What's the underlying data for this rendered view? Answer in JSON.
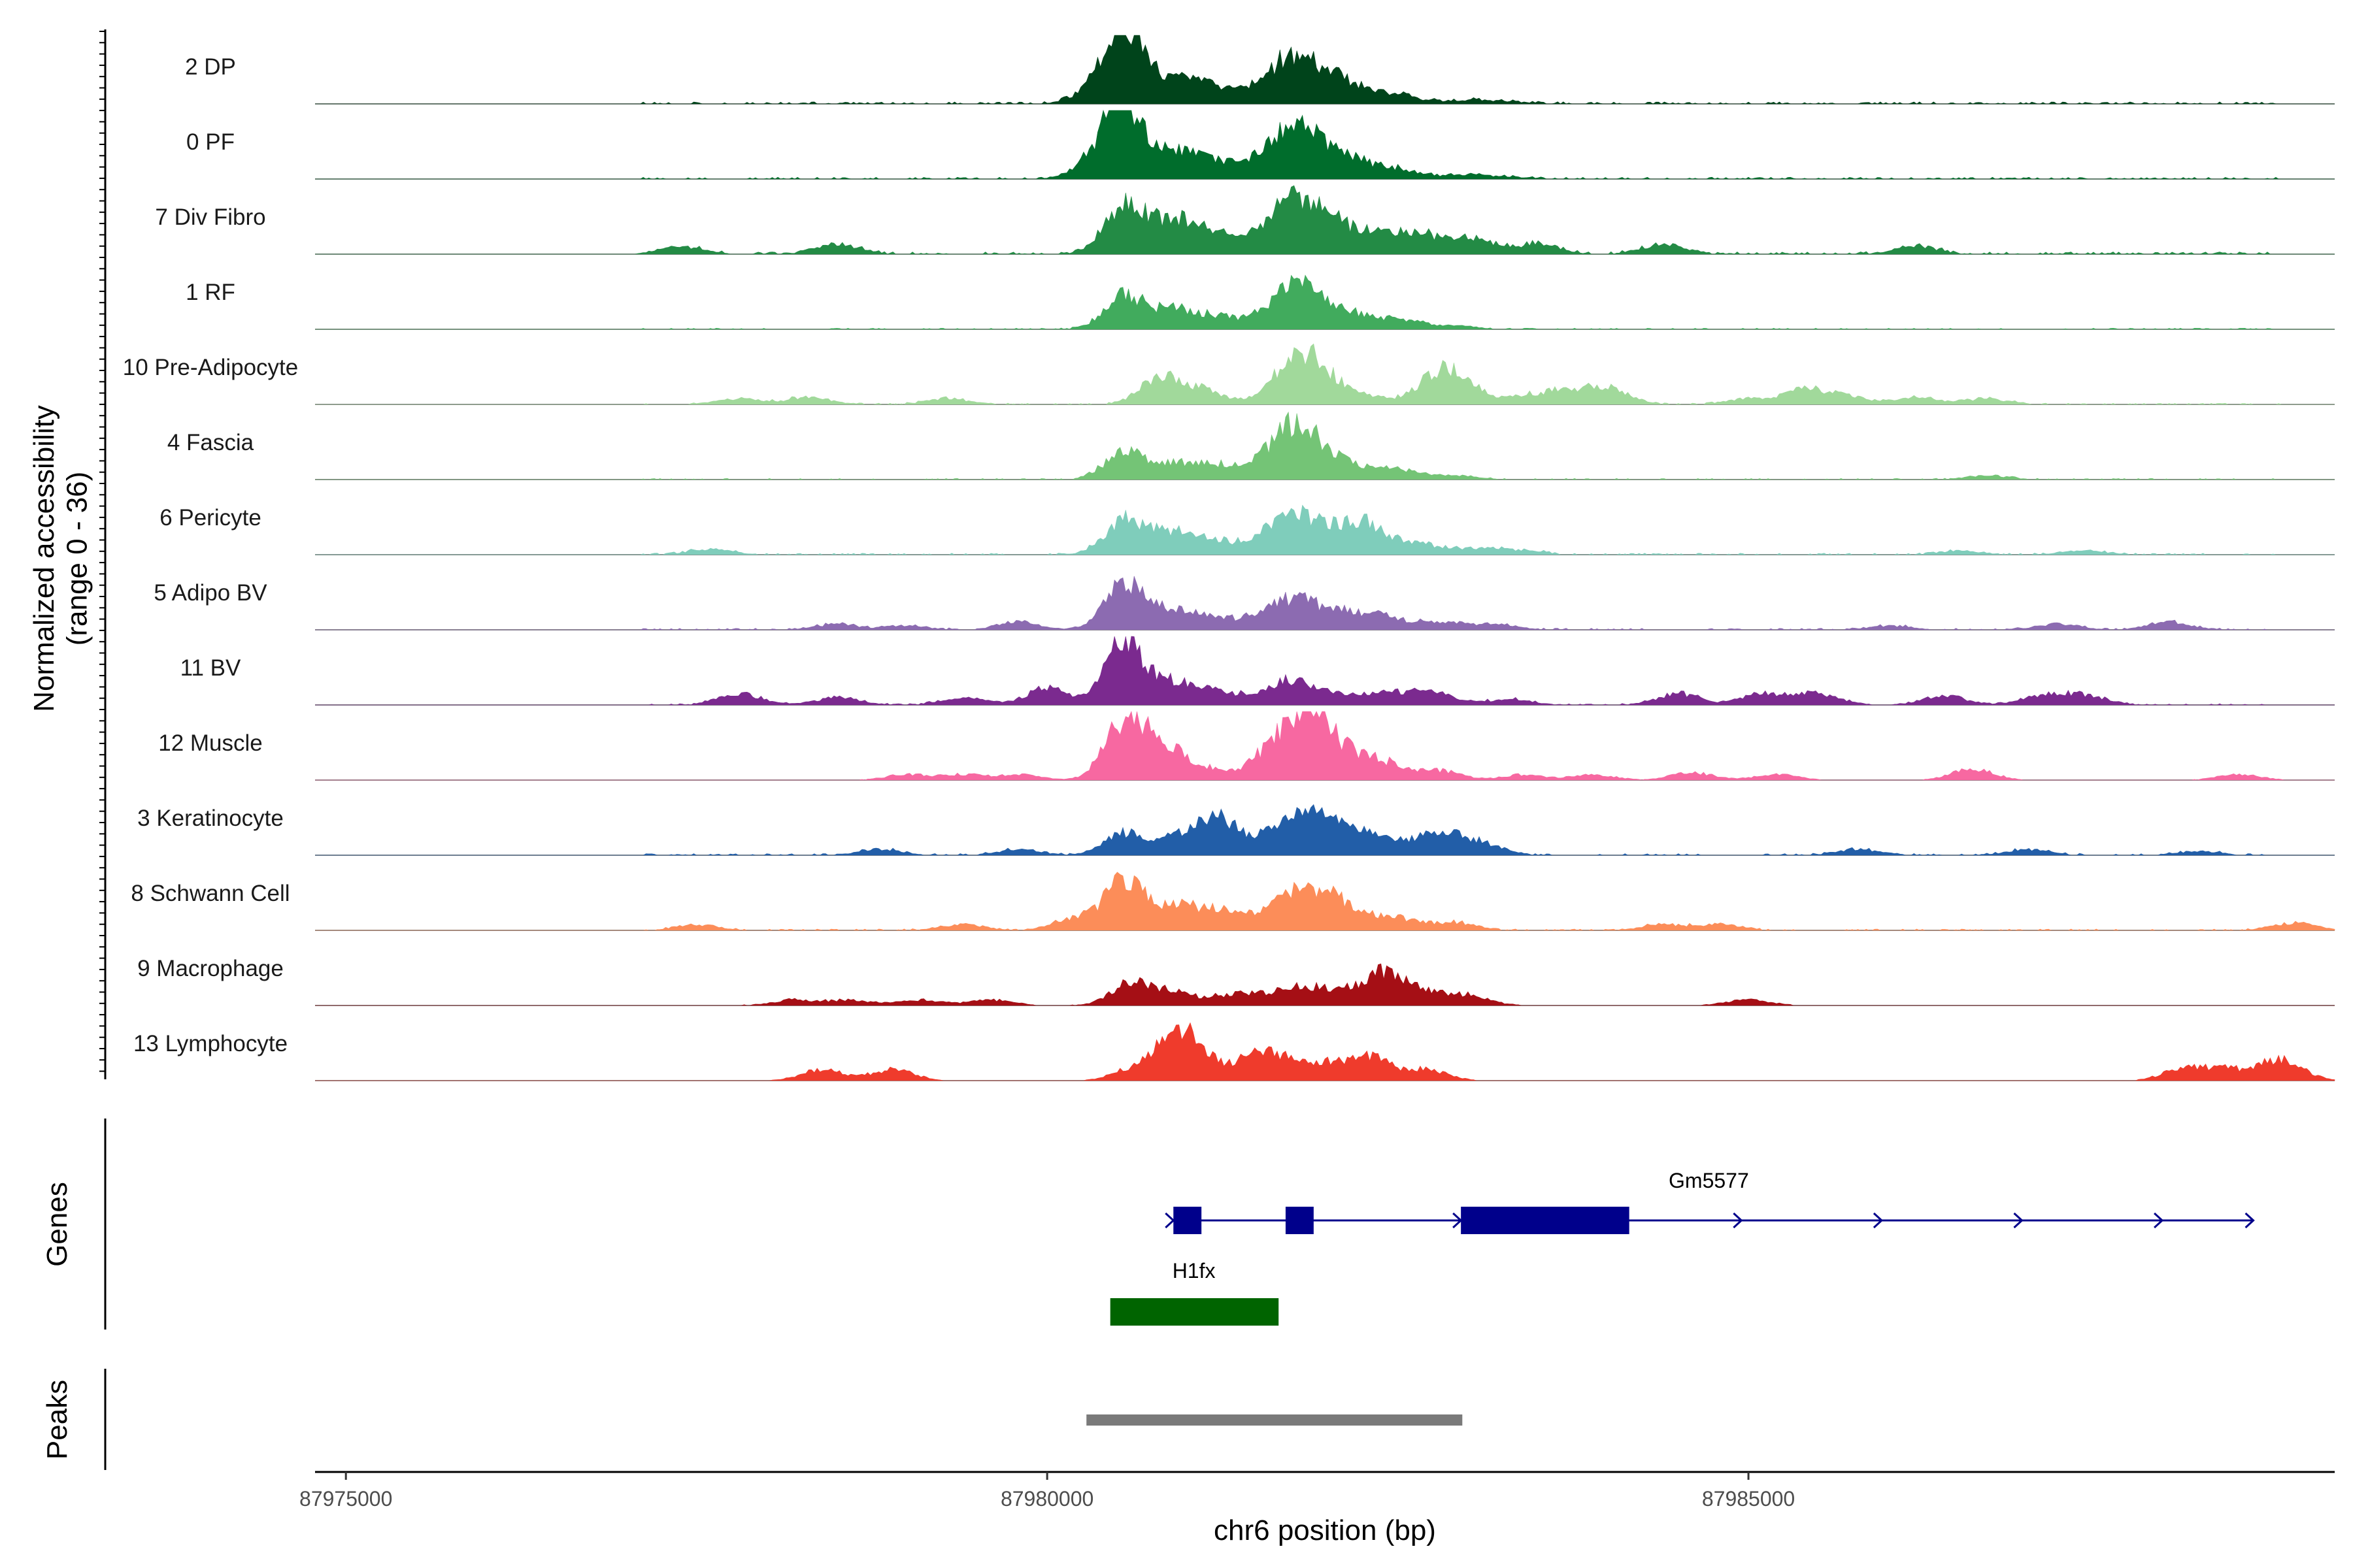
{
  "chart_data": {
    "type": "area",
    "title": "",
    "chromosome": "chr6",
    "xlabel": "chr6 position (bp)",
    "xlim": [
      87974780,
      87989180
    ],
    "x_ticks": [
      87975000,
      87980000,
      87985000
    ],
    "ylabel": "Normalized accessibility\n(range 0 - 36)",
    "ylim": [
      0,
      36
    ],
    "tracks": [
      {
        "name": "2 DP",
        "color": "#00441b",
        "spread": 0.9,
        "peaks": [
          [
            87980550,
            36,
            130
          ],
          [
            87980900,
            14,
            150
          ],
          [
            87980400,
            10,
            160
          ],
          [
            87981200,
            7,
            140
          ],
          [
            87981600,
            11,
            170
          ],
          [
            87981800,
            18,
            150
          ],
          [
            87982100,
            12,
            180
          ],
          [
            87982500,
            4,
            160
          ],
          [
            87983000,
            2,
            150
          ],
          [
            87983300,
            1,
            150
          ]
        ]
      },
      {
        "name": "0 PF",
        "color": "#006d2c",
        "spread": 0.8,
        "peaks": [
          [
            87980550,
            36,
            130
          ],
          [
            87980900,
            14,
            150
          ],
          [
            87980400,
            12,
            160
          ],
          [
            87981200,
            8,
            140
          ],
          [
            87981600,
            12,
            170
          ],
          [
            87981800,
            20,
            150
          ],
          [
            87982100,
            12,
            180
          ],
          [
            87982500,
            5,
            160
          ],
          [
            87983000,
            2,
            150
          ],
          [
            87983300,
            1,
            150
          ]
        ]
      },
      {
        "name": "7 Div Fibro",
        "color": "#238b45",
        "spread": 1.0,
        "peaks": [
          [
            87980550,
            26,
            140
          ],
          [
            87980900,
            18,
            150
          ],
          [
            87981200,
            10,
            140
          ],
          [
            87981600,
            12,
            170
          ],
          [
            87981800,
            22,
            150
          ],
          [
            87982100,
            14,
            180
          ],
          [
            87982500,
            10,
            160
          ],
          [
            87982800,
            7,
            150
          ],
          [
            87983100,
            6,
            150
          ],
          [
            87983500,
            5,
            150
          ],
          [
            87984400,
            5,
            150
          ],
          [
            87977400,
            4,
            150
          ],
          [
            87978500,
            5,
            150
          ],
          [
            87986200,
            4,
            150
          ]
        ]
      },
      {
        "name": "1 RF",
        "color": "#41ab5d",
        "spread": 0.5,
        "peaks": [
          [
            87980550,
            18,
            140
          ],
          [
            87980900,
            10,
            150
          ],
          [
            87981200,
            6,
            140
          ],
          [
            87981600,
            8,
            170
          ],
          [
            87981800,
            18,
            150
          ],
          [
            87982100,
            9,
            180
          ],
          [
            87982500,
            5,
            160
          ],
          [
            87982900,
            2,
            150
          ]
        ]
      },
      {
        "name": "10 Pre-Adipocyte",
        "color": "#a1d99b",
        "spread": 0.55,
        "peaks": [
          [
            87980800,
            14,
            140
          ],
          [
            87981100,
            8,
            150
          ],
          [
            87981700,
            15,
            150
          ],
          [
            87981900,
            19,
            150
          ],
          [
            87982200,
            5,
            160
          ],
          [
            87982700,
            7,
            150
          ],
          [
            87982900,
            16,
            150
          ],
          [
            87983400,
            4,
            150
          ],
          [
            87983700,
            7,
            150
          ],
          [
            87984000,
            8,
            150
          ],
          [
            87985000,
            3,
            150
          ],
          [
            87985400,
            8,
            150
          ],
          [
            87985700,
            4,
            150
          ],
          [
            87986200,
            4,
            150
          ],
          [
            87986700,
            3,
            150
          ],
          [
            87977800,
            3,
            150
          ],
          [
            87978300,
            4,
            150
          ],
          [
            87979300,
            3,
            150
          ]
        ]
      },
      {
        "name": "4 Fascia",
        "color": "#74c476",
        "spread": 0.5,
        "peaks": [
          [
            87980550,
            15,
            140
          ],
          [
            87980900,
            8,
            150
          ],
          [
            87981200,
            7,
            140
          ],
          [
            87981600,
            10,
            170
          ],
          [
            87981800,
            24,
            150
          ],
          [
            87982100,
            8,
            180
          ],
          [
            87982500,
            5,
            160
          ],
          [
            87982900,
            2,
            150
          ],
          [
            87986700,
            2,
            150
          ]
        ]
      },
      {
        "name": "6 Pericyte",
        "color": "#7fcdbb",
        "spread": 0.65,
        "peaks": [
          [
            87980550,
            18,
            140
          ],
          [
            87980900,
            12,
            150
          ],
          [
            87981200,
            6,
            140
          ],
          [
            87981600,
            10,
            170
          ],
          [
            87981800,
            14,
            150
          ],
          [
            87982100,
            10,
            180
          ],
          [
            87982300,
            12,
            160
          ],
          [
            87982700,
            5,
            150
          ],
          [
            87983100,
            3,
            150
          ],
          [
            87983400,
            2,
            150
          ],
          [
            87977600,
            3,
            150
          ],
          [
            87986500,
            2,
            150
          ],
          [
            87987400,
            2,
            150
          ]
        ]
      },
      {
        "name": "5 Adipo BV",
        "color": "#8c6bb1",
        "spread": 0.7,
        "peaks": [
          [
            87980550,
            24,
            140
          ],
          [
            87980900,
            10,
            150
          ],
          [
            87981200,
            6,
            140
          ],
          [
            87981600,
            8,
            170
          ],
          [
            87981800,
            11,
            150
          ],
          [
            87982100,
            8,
            180
          ],
          [
            87982400,
            6,
            160
          ],
          [
            87982800,
            4,
            150
          ],
          [
            87983200,
            3,
            150
          ],
          [
            87978500,
            3,
            150
          ],
          [
            87979000,
            2,
            150
          ],
          [
            87979800,
            4,
            150
          ],
          [
            87987200,
            3,
            150
          ],
          [
            87988000,
            4,
            150
          ],
          [
            87986000,
            2,
            150
          ]
        ]
      },
      {
        "name": "11 BV",
        "color": "#7b2a8f",
        "spread": 0.55,
        "peaks": [
          [
            87980550,
            36,
            130
          ],
          [
            87980900,
            12,
            150
          ],
          [
            87981200,
            7,
            140
          ],
          [
            87981600,
            7,
            170
          ],
          [
            87981800,
            8,
            150
          ],
          [
            87982100,
            5,
            180
          ],
          [
            87982500,
            6,
            160
          ],
          [
            87982800,
            5,
            150
          ],
          [
            87983300,
            3,
            150
          ],
          [
            87977800,
            6,
            150
          ],
          [
            87978500,
            4,
            150
          ],
          [
            87979400,
            4,
            150
          ],
          [
            87980000,
            9,
            150
          ],
          [
            87984500,
            6,
            150
          ],
          [
            87985100,
            6,
            150
          ],
          [
            87985500,
            6,
            150
          ],
          [
            87986400,
            5,
            150
          ],
          [
            87987100,
            5,
            150
          ],
          [
            87987400,
            5,
            150
          ]
        ]
      },
      {
        "name": "12 Muscle",
        "color": "#f768a1",
        "spread": 0.0,
        "peaks": [
          [
            87980550,
            30,
            140
          ],
          [
            87980800,
            18,
            150
          ],
          [
            87981100,
            6,
            140
          ],
          [
            87981600,
            14,
            170
          ],
          [
            87981850,
            31,
            150
          ],
          [
            87982100,
            12,
            180
          ],
          [
            87982400,
            8,
            160
          ],
          [
            87982800,
            5,
            150
          ],
          [
            87979000,
            3,
            150
          ],
          [
            87979400,
            3,
            150
          ],
          [
            87979800,
            3,
            150
          ],
          [
            87983400,
            3,
            150
          ],
          [
            87983900,
            3,
            150
          ],
          [
            87984600,
            4,
            150
          ],
          [
            87985200,
            3,
            150
          ],
          [
            87986600,
            6,
            150
          ],
          [
            87988500,
            3,
            150
          ]
        ]
      },
      {
        "name": "3 Keratinocyte",
        "color": "#225ea8",
        "spread": 0.7,
        "peaks": [
          [
            87980550,
            12,
            140
          ],
          [
            87980900,
            8,
            150
          ],
          [
            87981200,
            19,
            150
          ],
          [
            87981600,
            10,
            170
          ],
          [
            87981850,
            16,
            150
          ],
          [
            87982100,
            11,
            180
          ],
          [
            87982400,
            8,
            160
          ],
          [
            87982800,
            12,
            150
          ],
          [
            87983100,
            6,
            150
          ],
          [
            87978800,
            3,
            150
          ],
          [
            87979800,
            3,
            150
          ],
          [
            87985800,
            3,
            150
          ],
          [
            87987000,
            3,
            150
          ],
          [
            87988200,
            2,
            150
          ]
        ]
      },
      {
        "name": "8 Schwann Cell",
        "color": "#fc8d59",
        "spread": 0.6,
        "peaks": [
          [
            87980550,
            28,
            130
          ],
          [
            87980900,
            12,
            150
          ],
          [
            87981200,
            10,
            140
          ],
          [
            87981600,
            10,
            170
          ],
          [
            87981850,
            16,
            150
          ],
          [
            87982100,
            12,
            180
          ],
          [
            87982500,
            6,
            160
          ],
          [
            87982900,
            4,
            150
          ],
          [
            87980200,
            7,
            150
          ],
          [
            87977500,
            3,
            150
          ],
          [
            87979400,
            3,
            150
          ],
          [
            87984400,
            3,
            150
          ],
          [
            87984800,
            3,
            150
          ],
          [
            87988900,
            4,
            150
          ]
        ]
      },
      {
        "name": "9 Macrophage",
        "color": "#a50f15",
        "spread": 0.25,
        "peaks": [
          [
            87980600,
            12,
            140
          ],
          [
            87980900,
            7,
            150
          ],
          [
            87981300,
            5,
            140
          ],
          [
            87981600,
            5,
            170
          ],
          [
            87981850,
            7,
            150
          ],
          [
            87982100,
            5,
            180
          ],
          [
            87982400,
            16,
            150
          ],
          [
            87982700,
            6,
            150
          ],
          [
            87983000,
            5,
            150
          ],
          [
            87978200,
            3,
            150
          ],
          [
            87978600,
            3,
            150
          ],
          [
            87979100,
            3,
            150
          ],
          [
            87979600,
            3,
            150
          ],
          [
            87985000,
            3,
            150
          ]
        ]
      },
      {
        "name": "13 Lymphocyte",
        "color": "#ef3b2c",
        "spread": 0.0,
        "peaks": [
          [
            87980900,
            23,
            130
          ],
          [
            87981100,
            12,
            140
          ],
          [
            87980600,
            6,
            140
          ],
          [
            87981500,
            15,
            140
          ],
          [
            87981750,
            7,
            140
          ],
          [
            87982000,
            8,
            140
          ],
          [
            87982300,
            12,
            150
          ],
          [
            87982700,
            6,
            150
          ],
          [
            87978400,
            6,
            150
          ],
          [
            87978900,
            6,
            150
          ],
          [
            87988100,
            6,
            150
          ],
          [
            87988400,
            6,
            150
          ],
          [
            87988800,
            12,
            150
          ]
        ]
      }
    ],
    "genes": [
      {
        "name": "Gm5577",
        "strand": "+",
        "color": "#00008b",
        "start": 87980900,
        "end": 87988600,
        "exons": [
          [
            87980900,
            87981100
          ],
          [
            87981700,
            87981900
          ],
          [
            87982950,
            87984150
          ]
        ],
        "arrow_positions": [
          87980900,
          87982950,
          87984950,
          87985950,
          87986950,
          87987950,
          87988600
        ]
      },
      {
        "name": "H1fx",
        "strand": "",
        "color": "#006400",
        "start": 87980450,
        "end": 87981650,
        "exons": [
          [
            87980450,
            87981650
          ]
        ],
        "arrow_positions": []
      }
    ],
    "peaks": [
      {
        "start": 87980280,
        "end": 87982960,
        "color": "#7a7a7a"
      }
    ],
    "panel_labels": {
      "genes": "Genes",
      "peaks": "Peaks"
    }
  }
}
